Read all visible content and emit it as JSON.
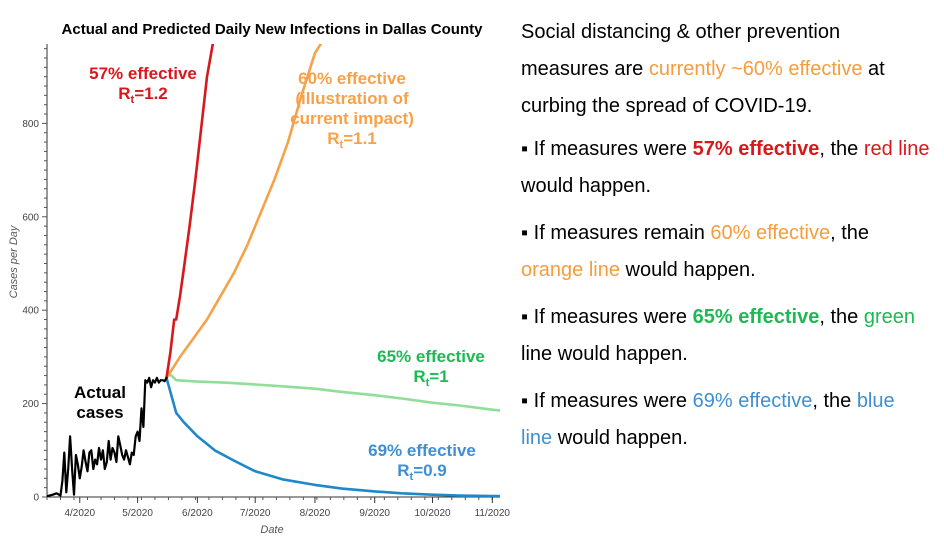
{
  "chart_data": {
    "type": "line",
    "title": "Actual and Predicted Daily New Infections in Dallas County",
    "xlabel": "Date",
    "ylabel": "Cases per Day",
    "ylim": [
      0,
      970
    ],
    "xlim": [
      "2020-03-15",
      "2020-11-05"
    ],
    "x_ticks": [
      "2020-04-01",
      "2020-05-01",
      "2020-06-01",
      "2020-07-01",
      "2020-08-01",
      "2020-09-01",
      "2020-10-01",
      "2020-11-01"
    ],
    "x_tick_labels": [
      "4/2020",
      "5/2020",
      "6/2020",
      "7/2020",
      "8/2020",
      "9/2020",
      "10/2020",
      "11/2020"
    ],
    "y_ticks": [
      0,
      200,
      400,
      600,
      800
    ],
    "grid": false,
    "series": [
      {
        "key": "actual",
        "color": "#000000",
        "x": [
          "2020-03-15",
          "2020-03-18",
          "2020-03-20",
          "2020-03-22",
          "2020-03-23",
          "2020-03-24",
          "2020-03-25",
          "2020-03-26",
          "2020-03-27",
          "2020-03-28",
          "2020-03-29",
          "2020-03-30",
          "2020-03-31",
          "2020-04-01",
          "2020-04-02",
          "2020-04-03",
          "2020-04-04",
          "2020-04-05",
          "2020-04-06",
          "2020-04-07",
          "2020-04-08",
          "2020-04-09",
          "2020-04-10",
          "2020-04-11",
          "2020-04-12",
          "2020-04-13",
          "2020-04-14",
          "2020-04-15",
          "2020-04-16",
          "2020-04-17",
          "2020-04-18",
          "2020-04-19",
          "2020-04-20",
          "2020-04-21",
          "2020-04-22",
          "2020-04-23",
          "2020-04-24",
          "2020-04-25",
          "2020-04-26",
          "2020-04-27",
          "2020-04-28",
          "2020-04-29",
          "2020-04-30",
          "2020-05-01",
          "2020-05-02",
          "2020-05-03",
          "2020-05-04",
          "2020-05-05",
          "2020-05-06",
          "2020-05-07",
          "2020-05-08",
          "2020-05-09",
          "2020-05-10",
          "2020-05-11",
          "2020-05-12",
          "2020-05-13",
          "2020-05-14",
          "2020-05-15",
          "2020-05-16"
        ],
        "y": [
          2,
          5,
          8,
          3,
          35,
          95,
          10,
          60,
          130,
          60,
          5,
          90,
          70,
          40,
          65,
          100,
          75,
          55,
          95,
          100,
          60,
          80,
          70,
          105,
          80,
          100,
          60,
          75,
          120,
          80,
          105,
          95,
          75,
          130,
          110,
          90,
          80,
          100,
          85,
          70,
          95,
          90,
          130,
          140,
          120,
          190,
          150,
          250,
          245,
          255,
          235,
          250,
          245,
          255,
          245,
          250,
          250,
          248,
          255
        ]
      },
      {
        "key": "r12",
        "color": "#d7191c",
        "x": [
          "2020-05-16",
          "2020-05-18",
          "2020-05-20",
          "2020-05-21",
          "2020-05-23",
          "2020-05-25",
          "2020-05-28",
          "2020-05-31",
          "2020-06-03",
          "2020-06-06",
          "2020-06-09"
        ],
        "y": [
          255,
          310,
          380,
          380,
          430,
          490,
          580,
          680,
          790,
          900,
          970
        ]
      },
      {
        "key": "r11",
        "color": "#f5a24a",
        "x": [
          "2020-05-16",
          "2020-05-23",
          "2020-05-30",
          "2020-06-06",
          "2020-06-13",
          "2020-06-20",
          "2020-06-27",
          "2020-07-04",
          "2020-07-11",
          "2020-07-18",
          "2020-07-25",
          "2020-08-01",
          "2020-08-04"
        ],
        "y": [
          255,
          300,
          340,
          380,
          430,
          480,
          540,
          610,
          680,
          760,
          860,
          950,
          970
        ]
      },
      {
        "key": "r10",
        "color": "#90de98",
        "x": [
          "2020-05-16",
          "2020-05-18",
          "2020-05-21",
          "2020-06-01",
          "2020-06-15",
          "2020-07-01",
          "2020-07-15",
          "2020-08-01",
          "2020-08-15",
          "2020-09-01",
          "2020-09-15",
          "2020-10-01",
          "2020-10-15",
          "2020-11-01",
          "2020-11-05"
        ],
        "y": [
          258,
          262,
          250,
          247,
          245,
          241,
          237,
          232,
          225,
          218,
          211,
          202,
          196,
          187,
          185
        ]
      },
      {
        "key": "r09",
        "color": "#1f88c9",
        "x": [
          "2020-05-16",
          "2020-05-18",
          "2020-05-21",
          "2020-05-25",
          "2020-06-01",
          "2020-06-10",
          "2020-06-20",
          "2020-07-01",
          "2020-07-15",
          "2020-08-01",
          "2020-08-15",
          "2020-09-01",
          "2020-09-15",
          "2020-10-01",
          "2020-10-15",
          "2020-11-01",
          "2020-11-05"
        ],
        "y": [
          255,
          225,
          180,
          160,
          130,
          100,
          78,
          55,
          38,
          26,
          18,
          12,
          8,
          5,
          3,
          2,
          2
        ]
      }
    ],
    "annotations": [
      {
        "key": "r12",
        "color": "#d7191c",
        "lines": [
          "57% effective"
        ],
        "rt_base": "R",
        "rt_sub": "t",
        "rt_value": "=1.2"
      },
      {
        "key": "r11",
        "color": "#f5a24a",
        "lines": [
          "60% effective",
          "(illustration of",
          "current impact)"
        ],
        "rt_base": "R",
        "rt_sub": "t",
        "rt_value": "=1.1"
      },
      {
        "key": "r10",
        "color": "#1db954",
        "lines": [
          "65% effective"
        ],
        "rt_base": "R",
        "rt_sub": "t",
        "rt_value": "=1"
      },
      {
        "key": "r09",
        "color": "#3f8fd2",
        "lines": [
          "69% effective"
        ],
        "rt_base": "R",
        "rt_sub": "t",
        "rt_value": "=0.9"
      },
      {
        "key": "actual",
        "color": "#000000",
        "lines": [
          "Actual",
          "cases"
        ]
      }
    ]
  },
  "side_text": {
    "intro_1": "Social distancing & other prevention measures are ",
    "intro_highlight": "currently ~60% effective",
    "intro_2": " at curbing the spread of COVID-19.",
    "bullet_glyph": "▪",
    "bullets": [
      {
        "pre": "If measures were ",
        "pct": "57% effective",
        "mid": ", the ",
        "line": "red line",
        "post": " would happen."
      },
      {
        "pre": "If measures remain ",
        "pct": "60% effective",
        "mid": ", the ",
        "line": "orange line",
        "post": " would happen."
      },
      {
        "pre": "If measures were ",
        "pct": "65% effective",
        "mid": ", the ",
        "line": "green",
        "post": " line would happen."
      },
      {
        "pre": "If measures were ",
        "pct": "69% effective",
        "mid": ", the ",
        "line": "blue line",
        "post": " would happen."
      }
    ]
  }
}
